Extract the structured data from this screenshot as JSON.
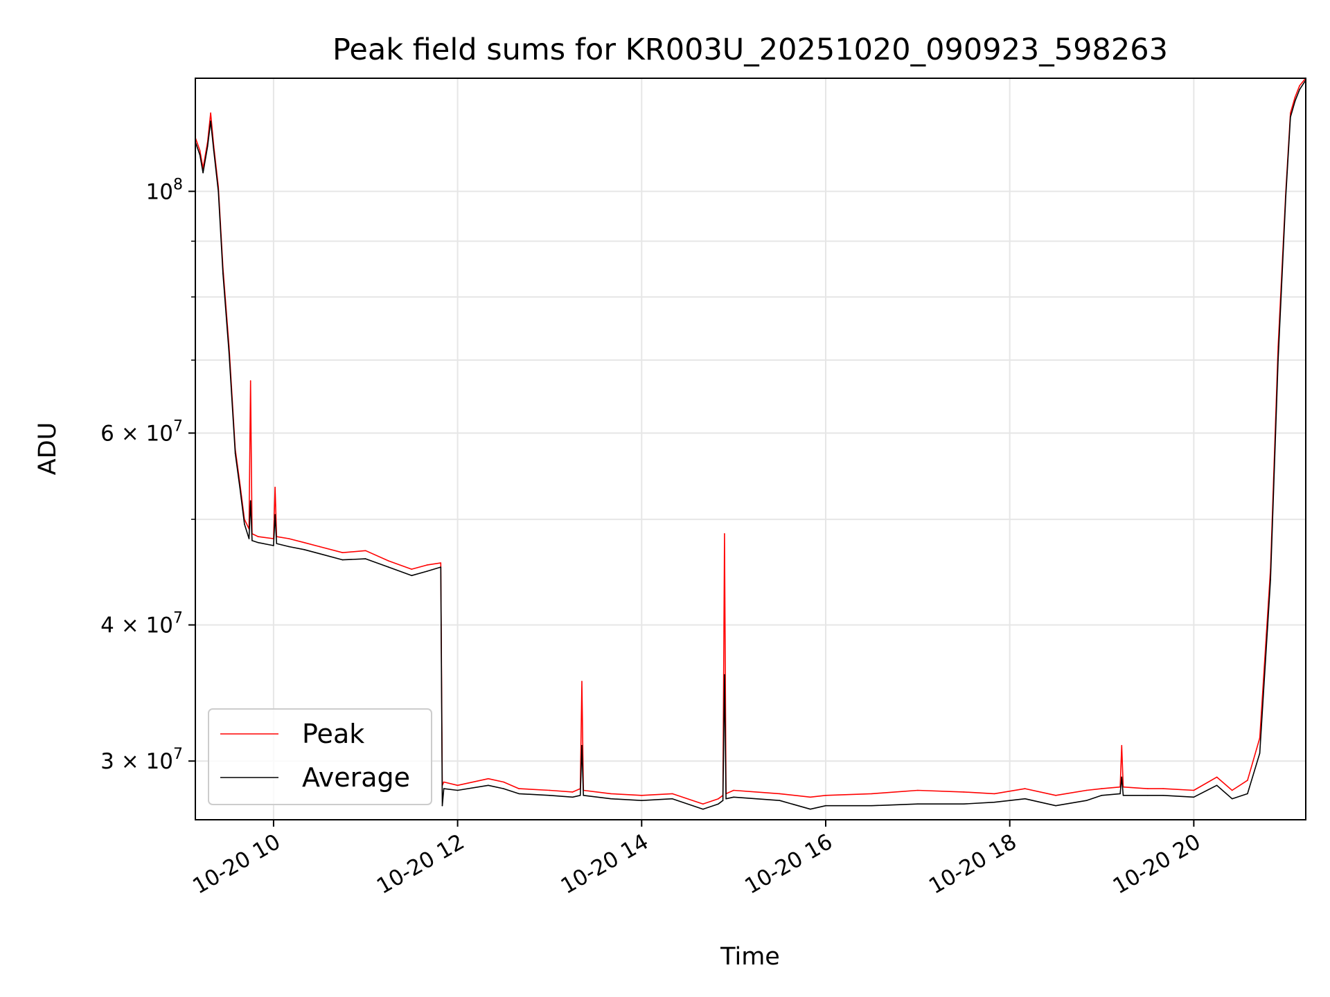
{
  "chart_data": {
    "type": "line",
    "title": "Peak field sums for KR003U_20251020_090923_598263",
    "xlabel": "Time",
    "ylabel": "ADU",
    "yscale": "log",
    "grid": true,
    "legend_position": "lower-left",
    "xlim": [
      "2025-10-20T09:09",
      "2025-10-20T21:13"
    ],
    "ylim": [
      26500000,
      127000000
    ],
    "x_ticks": [
      {
        "value": "2025-10-20T10:00",
        "label": "10-20 10"
      },
      {
        "value": "2025-10-20T12:00",
        "label": "10-20 12"
      },
      {
        "value": "2025-10-20T14:00",
        "label": "10-20 14"
      },
      {
        "value": "2025-10-20T16:00",
        "label": "10-20 16"
      },
      {
        "value": "2025-10-20T18:00",
        "label": "10-20 18"
      },
      {
        "value": "2025-10-20T20:00",
        "label": "10-20 20"
      }
    ],
    "y_ticks": [
      {
        "value": 100000000,
        "base": "10",
        "exp": "8"
      },
      {
        "value": 60000000,
        "mant": "6",
        "exp": "7"
      },
      {
        "value": 40000000,
        "mant": "4",
        "exp": "7"
      },
      {
        "value": 30000000,
        "mant": "3",
        "exp": "7"
      }
    ],
    "y_minor_ticks": [
      50000000,
      70000000,
      80000000,
      90000000
    ],
    "series": [
      {
        "name": "Peak",
        "color": "#ff0000",
        "x": [
          "2025-10-20T09:09",
          "2025-10-20T09:12",
          "2025-10-20T09:14",
          "2025-10-20T09:17",
          "2025-10-20T09:19",
          "2025-10-20T09:21",
          "2025-10-20T09:24",
          "2025-10-20T09:27",
          "2025-10-20T09:31",
          "2025-10-20T09:35",
          "2025-10-20T09:38",
          "2025-10-20T09:41",
          "2025-10-20T09:44",
          "2025-10-20T09:45",
          "2025-10-20T09:46",
          "2025-10-20T09:50",
          "2025-10-20T10:00",
          "2025-10-20T10:01",
          "2025-10-20T10:02",
          "2025-10-20T10:10",
          "2025-10-20T10:20",
          "2025-10-20T10:30",
          "2025-10-20T10:45",
          "2025-10-20T11:00",
          "2025-10-20T11:15",
          "2025-10-20T11:30",
          "2025-10-20T11:40",
          "2025-10-20T11:49",
          "2025-10-20T11:50",
          "2025-10-20T11:51",
          "2025-10-20T12:00",
          "2025-10-20T12:20",
          "2025-10-20T12:30",
          "2025-10-20T12:40",
          "2025-10-20T13:00",
          "2025-10-20T13:15",
          "2025-10-20T13:20",
          "2025-10-20T13:21",
          "2025-10-20T13:22",
          "2025-10-20T13:40",
          "2025-10-20T14:00",
          "2025-10-20T14:20",
          "2025-10-20T14:40",
          "2025-10-20T14:50",
          "2025-10-20T14:53",
          "2025-10-20T14:54",
          "2025-10-20T14:55",
          "2025-10-20T15:00",
          "2025-10-20T15:30",
          "2025-10-20T15:50",
          "2025-10-20T16:00",
          "2025-10-20T16:30",
          "2025-10-20T17:00",
          "2025-10-20T17:30",
          "2025-10-20T17:50",
          "2025-10-20T18:10",
          "2025-10-20T18:30",
          "2025-10-20T18:50",
          "2025-10-20T19:00",
          "2025-10-20T19:12",
          "2025-10-20T19:13",
          "2025-10-20T19:14",
          "2025-10-20T19:30",
          "2025-10-20T19:40",
          "2025-10-20T20:00",
          "2025-10-20T20:15",
          "2025-10-20T20:25",
          "2025-10-20T20:35",
          "2025-10-20T20:43",
          "2025-10-20T20:50",
          "2025-10-20T20:55",
          "2025-10-20T21:00",
          "2025-10-20T21:03",
          "2025-10-20T21:06",
          "2025-10-20T21:09",
          "2025-10-20T21:13"
        ],
        "values": [
          112000000,
          109000000,
          105000000,
          111000000,
          118000000,
          110000000,
          101000000,
          85000000,
          72000000,
          58000000,
          54000000,
          50000000,
          49000000,
          67000000,
          48500000,
          48200000,
          48000000,
          53500000,
          48200000,
          48000000,
          47600000,
          47200000,
          46600000,
          46800000,
          45800000,
          45000000,
          45400000,
          45600000,
          28500000,
          28700000,
          28500000,
          28900000,
          28700000,
          28300000,
          28200000,
          28100000,
          28300000,
          35500000,
          28200000,
          28000000,
          27900000,
          28000000,
          27400000,
          27700000,
          27900000,
          48500000,
          28000000,
          28200000,
          28000000,
          27800000,
          27900000,
          28000000,
          28200000,
          28100000,
          28000000,
          28300000,
          27900000,
          28200000,
          28300000,
          28400000,
          31000000,
          28400000,
          28300000,
          28300000,
          28200000,
          29000000,
          28200000,
          28800000,
          31500000,
          45000000,
          72000000,
          100000000,
          118000000,
          122000000,
          125000000,
          127000000
        ]
      },
      {
        "name": "Average",
        "color": "#000000",
        "x": [
          "2025-10-20T09:09",
          "2025-10-20T09:12",
          "2025-10-20T09:14",
          "2025-10-20T09:17",
          "2025-10-20T09:19",
          "2025-10-20T09:21",
          "2025-10-20T09:24",
          "2025-10-20T09:27",
          "2025-10-20T09:31",
          "2025-10-20T09:35",
          "2025-10-20T09:38",
          "2025-10-20T09:41",
          "2025-10-20T09:44",
          "2025-10-20T09:45",
          "2025-10-20T09:46",
          "2025-10-20T09:50",
          "2025-10-20T10:00",
          "2025-10-20T10:01",
          "2025-10-20T10:02",
          "2025-10-20T10:10",
          "2025-10-20T10:20",
          "2025-10-20T10:30",
          "2025-10-20T10:45",
          "2025-10-20T11:00",
          "2025-10-20T11:15",
          "2025-10-20T11:30",
          "2025-10-20T11:40",
          "2025-10-20T11:49",
          "2025-10-20T11:50",
          "2025-10-20T11:51",
          "2025-10-20T12:00",
          "2025-10-20T12:20",
          "2025-10-20T12:30",
          "2025-10-20T12:40",
          "2025-10-20T13:00",
          "2025-10-20T13:15",
          "2025-10-20T13:20",
          "2025-10-20T13:21",
          "2025-10-20T13:22",
          "2025-10-20T13:40",
          "2025-10-20T14:00",
          "2025-10-20T14:20",
          "2025-10-20T14:40",
          "2025-10-20T14:50",
          "2025-10-20T14:53",
          "2025-10-20T14:54",
          "2025-10-20T14:55",
          "2025-10-20T15:00",
          "2025-10-20T15:30",
          "2025-10-20T15:50",
          "2025-10-20T16:00",
          "2025-10-20T16:30",
          "2025-10-20T17:00",
          "2025-10-20T17:30",
          "2025-10-20T17:50",
          "2025-10-20T18:10",
          "2025-10-20T18:30",
          "2025-10-20T18:50",
          "2025-10-20T19:00",
          "2025-10-20T19:12",
          "2025-10-20T19:13",
          "2025-10-20T19:14",
          "2025-10-20T19:30",
          "2025-10-20T19:40",
          "2025-10-20T20:00",
          "2025-10-20T20:15",
          "2025-10-20T20:25",
          "2025-10-20T20:35",
          "2025-10-20T20:43",
          "2025-10-20T20:50",
          "2025-10-20T20:55",
          "2025-10-20T21:00",
          "2025-10-20T21:03",
          "2025-10-20T21:06",
          "2025-10-20T21:09",
          "2025-10-20T21:13"
        ],
        "values": [
          111000000,
          108000000,
          104000000,
          110000000,
          116000000,
          109000000,
          100000000,
          84000000,
          71000000,
          57500000,
          53500000,
          49500000,
          48000000,
          52000000,
          47800000,
          47600000,
          47300000,
          50500000,
          47500000,
          47200000,
          46900000,
          46500000,
          45900000,
          46000000,
          45200000,
          44400000,
          44800000,
          45200000,
          27300000,
          28300000,
          28200000,
          28500000,
          28300000,
          28000000,
          27900000,
          27800000,
          27900000,
          31000000,
          27900000,
          27700000,
          27600000,
          27700000,
          27100000,
          27400000,
          27600000,
          36000000,
          27700000,
          27800000,
          27600000,
          27100000,
          27300000,
          27300000,
          27400000,
          27400000,
          27500000,
          27700000,
          27300000,
          27600000,
          27900000,
          28000000,
          29000000,
          27900000,
          27900000,
          27900000,
          27800000,
          28500000,
          27700000,
          28000000,
          30500000,
          44000000,
          70000000,
          99000000,
          117000000,
          121000000,
          124000000,
          126500000
        ]
      }
    ]
  }
}
